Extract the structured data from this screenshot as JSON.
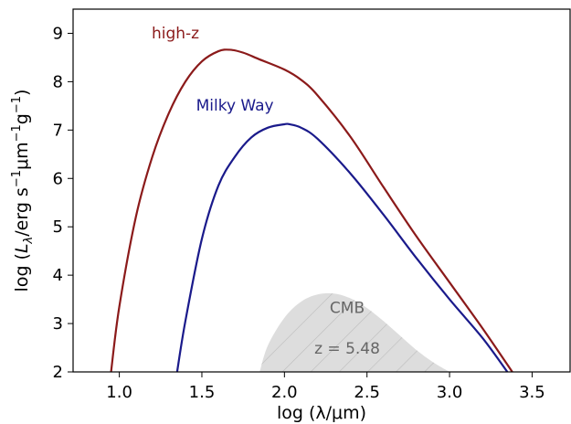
{
  "chart_data": {
    "type": "line",
    "title": "",
    "xlabel": "log (λ/μm)",
    "ylabel": "log (Lλ/erg s⁻¹μm⁻¹g⁻¹)",
    "ylabel_parts": {
      "prefix": "log (",
      "L": "L",
      "lambda_sub": "λ",
      "unit_open": "/erg s",
      "exp1": "−1",
      "unit_mid": "μm",
      "exp2": "−1",
      "unit_g": "g",
      "exp3": "−1",
      "close": ")"
    },
    "xlim": [
      0.72,
      3.73
    ],
    "ylim": [
      2,
      9.5
    ],
    "xticks": [
      1.0,
      1.5,
      2.0,
      2.5,
      3.0,
      3.5
    ],
    "xtick_labels": [
      "1.0",
      "1.5",
      "2.0",
      "2.5",
      "3.0",
      "3.5"
    ],
    "yticks": [
      2,
      3,
      4,
      5,
      6,
      7,
      8,
      9
    ],
    "ytick_labels": [
      "2",
      "3",
      "4",
      "5",
      "6",
      "7",
      "8",
      "9"
    ],
    "grid": false,
    "series": [
      {
        "name": "high-z",
        "color": "#8b1a1a",
        "x": [
          0.95,
          1.0,
          1.1,
          1.2,
          1.3,
          1.4,
          1.5,
          1.6,
          1.67,
          1.75,
          1.85,
          2.0,
          2.1,
          2.2,
          2.4,
          2.6,
          2.8,
          3.0,
          3.2,
          3.38
        ],
        "y": [
          2.0,
          3.35,
          5.2,
          6.45,
          7.35,
          8.0,
          8.42,
          8.63,
          8.66,
          8.6,
          8.46,
          8.25,
          8.04,
          7.72,
          6.86,
          5.82,
          4.8,
          3.85,
          2.9,
          2.0
        ]
      },
      {
        "name": "Milky Way",
        "color": "#1a1a8b",
        "x": [
          1.35,
          1.4,
          1.5,
          1.6,
          1.7,
          1.8,
          1.9,
          2.0,
          2.03,
          2.1,
          2.2,
          2.4,
          2.6,
          2.8,
          3.0,
          3.2,
          3.35
        ],
        "y": [
          2.0,
          3.05,
          4.75,
          5.85,
          6.45,
          6.85,
          7.05,
          7.12,
          7.12,
          7.05,
          6.82,
          6.1,
          5.25,
          4.35,
          3.5,
          2.7,
          2.0
        ]
      },
      {
        "name": "CMB",
        "color": "#dddddd",
        "fill": true,
        "x": [
          1.85,
          1.9,
          2.0,
          2.1,
          2.2,
          2.3,
          2.4,
          2.5,
          2.6,
          2.7,
          2.8,
          2.9,
          3.0
        ],
        "y": [
          2.0,
          2.55,
          3.12,
          3.45,
          3.6,
          3.62,
          3.52,
          3.32,
          3.05,
          2.75,
          2.45,
          2.2,
          2.0
        ]
      }
    ],
    "annotations": [
      {
        "text": "high-z",
        "x": 1.34,
        "y": 8.9,
        "color": "#8b1a1a",
        "type": "series"
      },
      {
        "text": "Milky Way",
        "x": 1.7,
        "y": 7.4,
        "color": "#1a1a8b",
        "type": "series"
      },
      {
        "text": "CMB",
        "x": 2.38,
        "y": 3.22,
        "color": "#666666",
        "type": "annot"
      },
      {
        "text": "z = 5.48",
        "x": 2.38,
        "y": 2.38,
        "color": "#666666",
        "type": "annot"
      }
    ]
  }
}
